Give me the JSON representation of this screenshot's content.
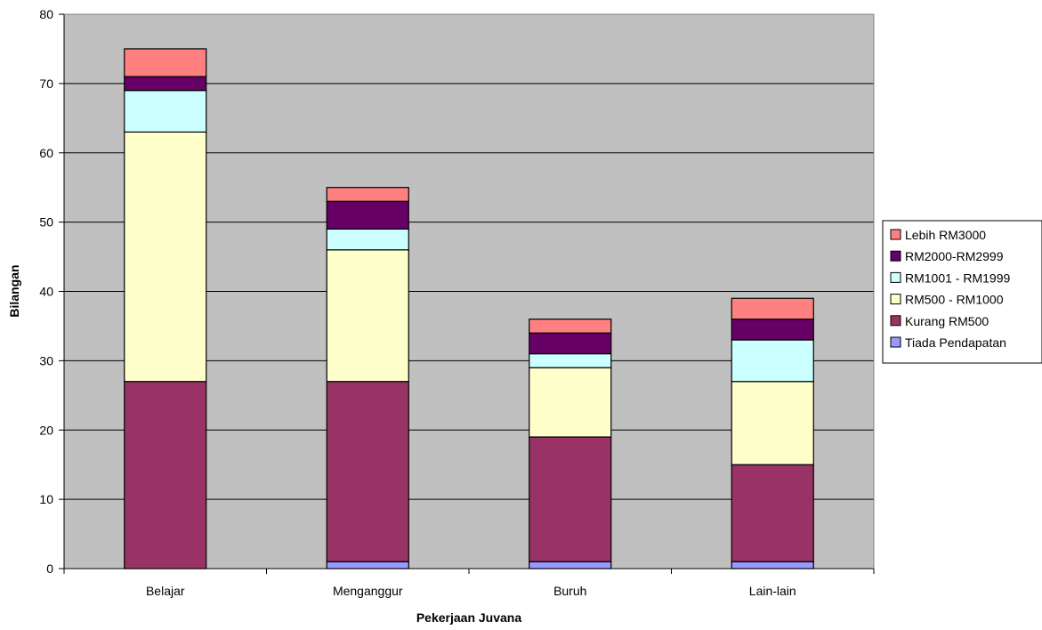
{
  "chart_data": {
    "type": "bar",
    "stacked": true,
    "title": "",
    "xlabel": "Pekerjaan Juvana",
    "ylabel": "Bilangan",
    "ylim": [
      0,
      80
    ],
    "yticks": [
      "0",
      "10",
      "20",
      "30",
      "40",
      "50",
      "60",
      "70",
      "80"
    ],
    "grid": true,
    "legend_position": "right",
    "plot_background": "#C0C0C0",
    "categories": [
      "Belajar",
      "Menganggur",
      "Buruh",
      "Lain-lain"
    ],
    "series": [
      {
        "name": "Tiada Pendapatan",
        "color": "#9999FF",
        "values": [
          0,
          1,
          1,
          1
        ]
      },
      {
        "name": "Kurang RM500",
        "color": "#993366",
        "values": [
          27,
          26,
          18,
          14
        ]
      },
      {
        "name": "RM500 - RM1000",
        "color": "#FFFFCC",
        "values": [
          36,
          19,
          10,
          12
        ]
      },
      {
        "name": "RM1001 - RM1999",
        "color": "#CCFFFF",
        "values": [
          6,
          3,
          2,
          6
        ]
      },
      {
        "name": "RM2000-RM2999",
        "color": "#660066",
        "values": [
          2,
          4,
          3,
          3
        ]
      },
      {
        "name": "Lebih RM3000",
        "color": "#FF8080",
        "values": [
          4,
          2,
          2,
          3
        ]
      }
    ]
  }
}
